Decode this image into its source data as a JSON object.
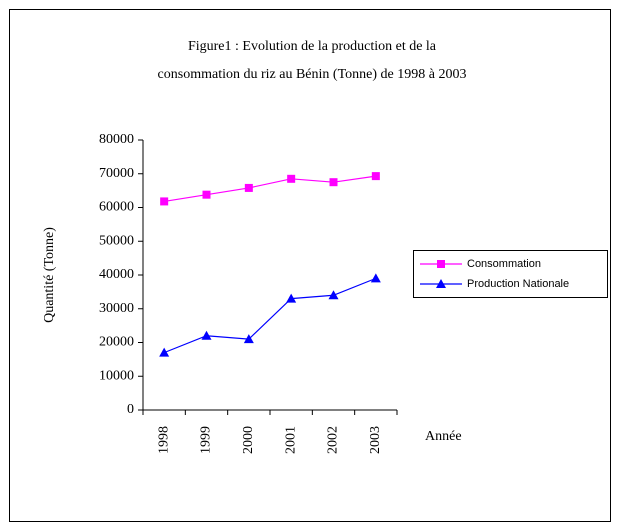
{
  "chart_data": {
    "type": "line",
    "title": [
      "Figure1 : Evolution de la production et de la",
      "consommation du riz au Bénin (Tonne) de 1998 à 2003"
    ],
    "x_label": "Année",
    "y_label": "Quantité (Tonne)",
    "categories": [
      "1998",
      "1999",
      "2000",
      "2001",
      "2002",
      "2003"
    ],
    "series": [
      {
        "name": "Consommation",
        "color": "#ff00ff",
        "marker": "square",
        "values": [
          61800,
          63800,
          65800,
          68500,
          67500,
          69300
        ]
      },
      {
        "name": "Production Nationale",
        "color": "#0000ff",
        "marker": "triangle",
        "values": [
          17000,
          22000,
          21000,
          33000,
          34000,
          39000
        ]
      }
    ],
    "ylim": [
      0,
      80000
    ],
    "yticks": [
      0,
      10000,
      20000,
      30000,
      40000,
      50000,
      60000,
      70000,
      80000
    ],
    "grid": false,
    "legend": "right"
  }
}
